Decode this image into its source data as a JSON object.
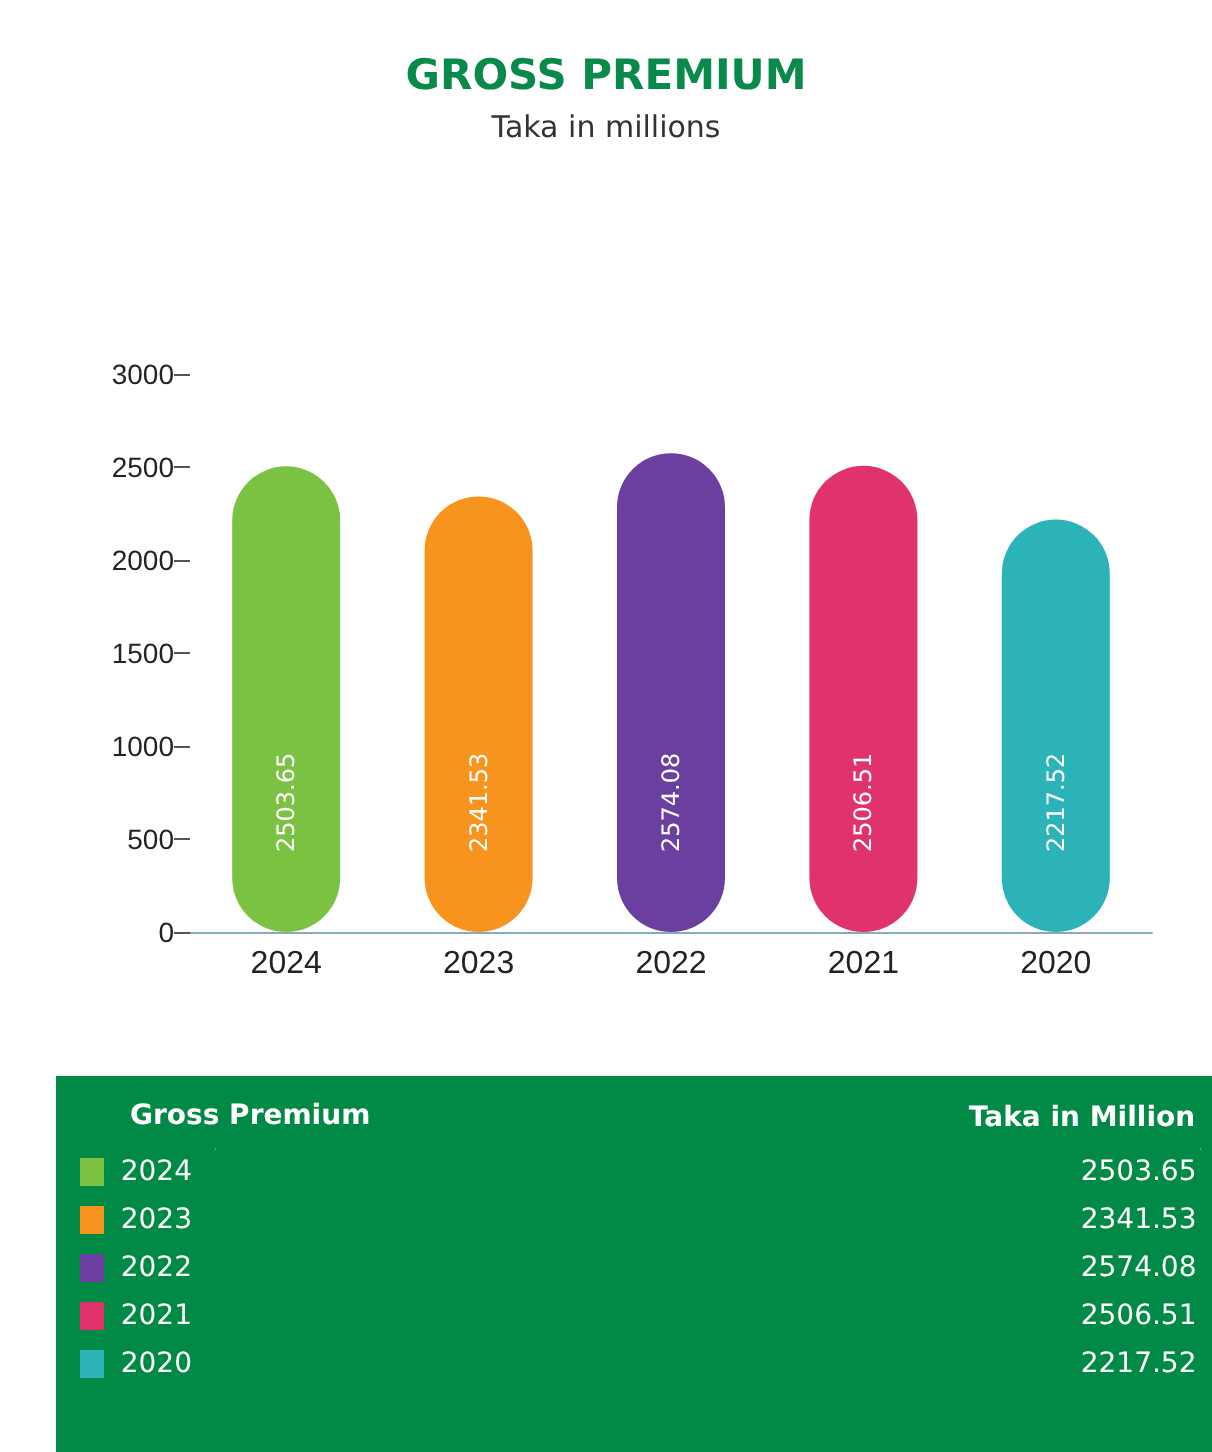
{
  "chart_data": [
    {
      "type": "bar",
      "title": "GROSS PREMIUM",
      "subtitle": "Taka in millions",
      "categories": [
        "2024",
        "2023",
        "2022",
        "2021",
        "2020"
      ],
      "values": [
        2503.65,
        2341.53,
        2574.08,
        2506.51,
        2217.52
      ],
      "colors": [
        "#7cc242",
        "#f7941d",
        "#6a3fa0",
        "#e0336b",
        "#2bb3b8"
      ],
      "ylim": [
        0,
        3000
      ],
      "yticks": [
        0,
        500,
        1000,
        1500,
        2000,
        2500,
        3000
      ],
      "data_labels": true
    },
    {
      "type": "heatmap",
      "ylabel": "Gross Premium",
      "categories": [
        "Taka in Million"
      ],
      "y_categories": [
        "2024",
        "2023",
        "2022",
        "2021",
        "2020"
      ],
      "cells": [
        [
          2503.65
        ],
        [
          2341.53
        ],
        [
          2574.08
        ],
        [
          2506.51
        ],
        [
          2217.52
        ]
      ],
      "data_labels": true
    }
  ]
}
